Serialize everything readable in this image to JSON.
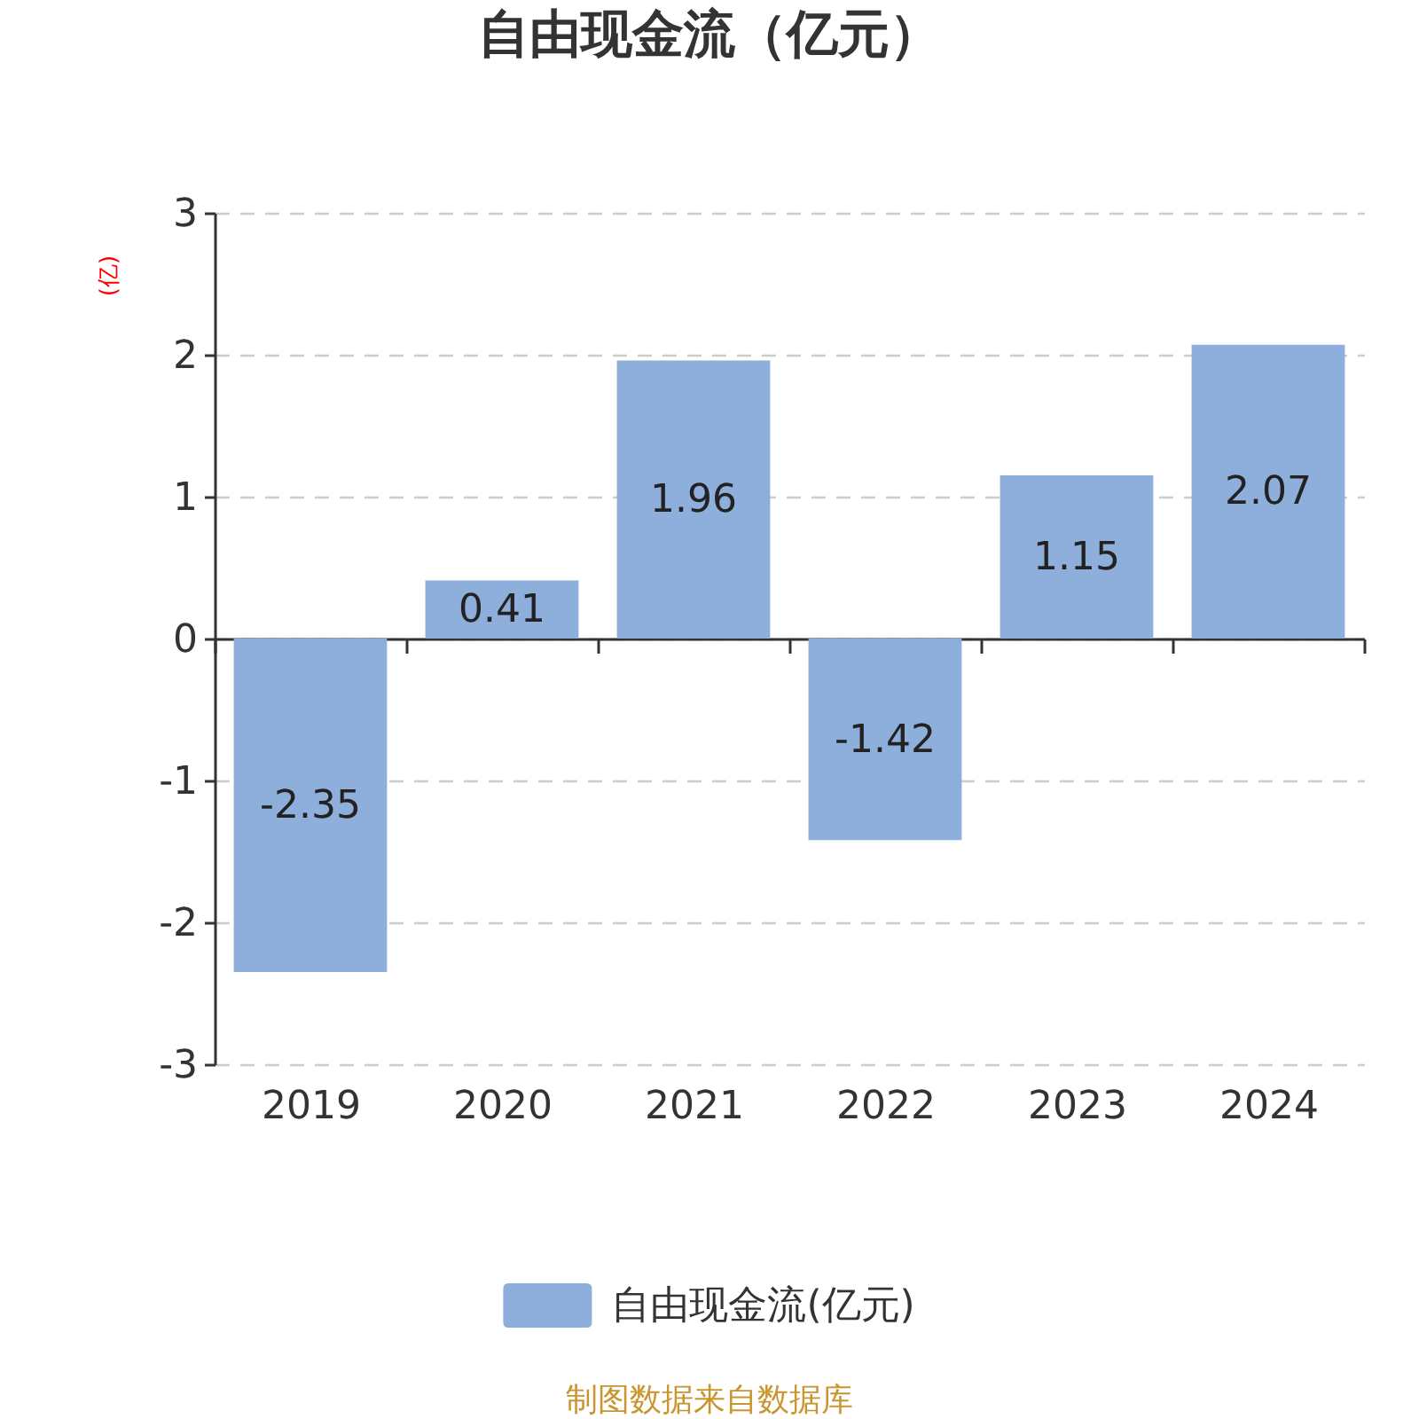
{
  "chart_data": {
    "type": "bar",
    "title": "自由现金流（亿元）",
    "ylabel": "(亿)",
    "categories": [
      "2019",
      "2020",
      "2021",
      "2022",
      "2023",
      "2024"
    ],
    "series": [
      {
        "name": "自由现金流(亿元)",
        "color": "#8eaedb",
        "values": [
          -2.35,
          0.41,
          1.96,
          -1.42,
          1.15,
          2.07
        ]
      }
    ],
    "ylim": [
      -3,
      3
    ],
    "yticks": [
      -3,
      -2,
      -1,
      0,
      1,
      2,
      3
    ],
    "grid": "y",
    "legend": "bottom",
    "data_labels": true,
    "annotations": [
      "制图数据来自数据库"
    ]
  }
}
